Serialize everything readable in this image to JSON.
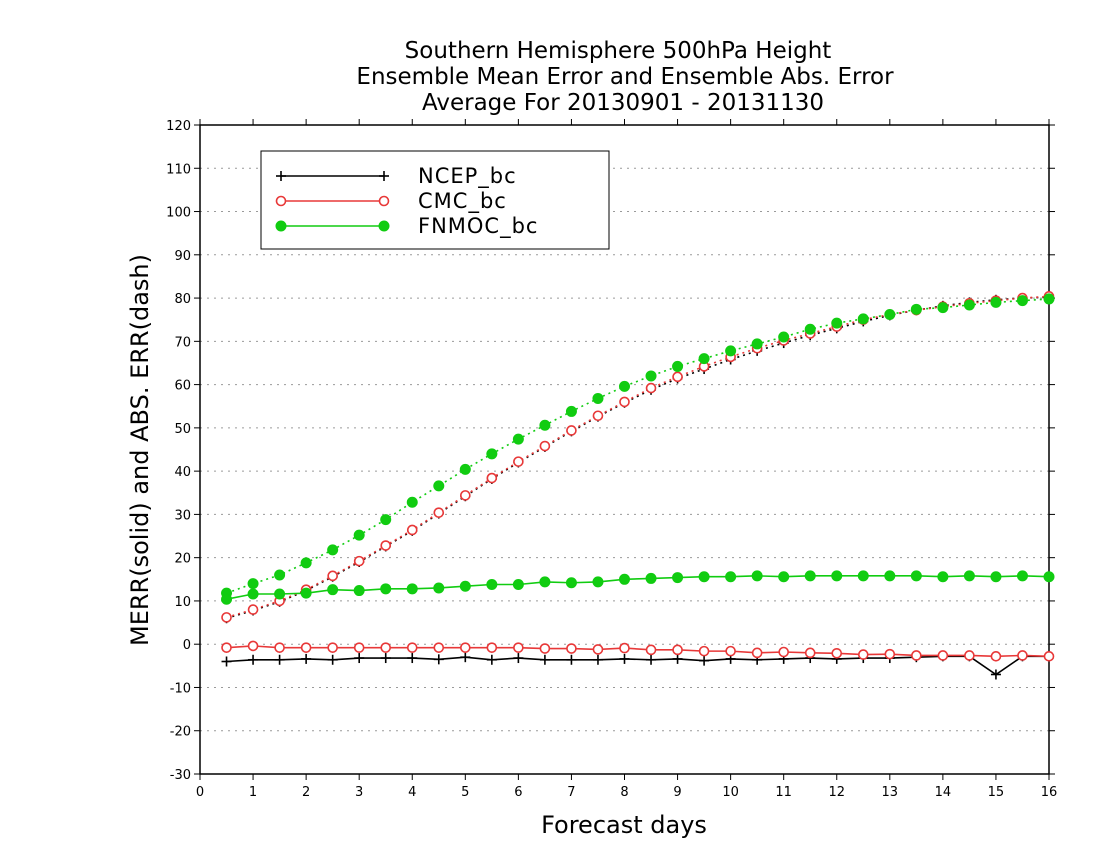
{
  "chart_data": {
    "type": "line",
    "title_lines": [
      "Southern Hemisphere 500hPa Height",
      "Ensemble Mean Error and Ensemble Abs. Error",
      "Average For 20130901 - 20131130"
    ],
    "xlabel": "Forecast days",
    "ylabel": "MERR(solid) and ABS. ERR(dash)",
    "xlim": [
      0,
      16
    ],
    "ylim": [
      -30,
      120
    ],
    "x_ticks": [
      "0",
      "1",
      "2",
      "3",
      "4",
      "5",
      "6",
      "7",
      "8",
      "9",
      "10",
      "11",
      "12",
      "13",
      "14",
      "15",
      "16"
    ],
    "y_ticks": [
      "-30",
      "-20",
      "-10",
      "0",
      "10",
      "20",
      "30",
      "40",
      "50",
      "60",
      "70",
      "80",
      "90",
      "100",
      "110",
      "120"
    ],
    "grid": "horizontal dotted",
    "legend_position": "top-left",
    "x": [
      0.5,
      1,
      1.5,
      2,
      2.5,
      3,
      3.5,
      4,
      4.5,
      5,
      5.5,
      6,
      6.5,
      7,
      7.5,
      8,
      8.5,
      9,
      9.5,
      10,
      10.5,
      11,
      11.5,
      12,
      12.5,
      13,
      13.5,
      14,
      14.5,
      15,
      15.5,
      16
    ],
    "series": [
      {
        "name": "NCEP_bc",
        "color": "#000000",
        "marker": "plus",
        "merr": [
          -4,
          -3.6,
          -3.6,
          -3.4,
          -3.6,
          -3.2,
          -3.2,
          -3.2,
          -3.5,
          -3,
          -3.6,
          -3.2,
          -3.6,
          -3.6,
          -3.6,
          -3.4,
          -3.6,
          -3.4,
          -3.8,
          -3.4,
          -3.6,
          -3.4,
          -3.2,
          -3.4,
          -3.2,
          -3.2,
          -3,
          -2.8,
          -2.8,
          -7,
          -2.8,
          -2.8
        ],
        "abs_err": [
          6,
          7.8,
          9.8,
          12.4,
          15.6,
          19,
          22.6,
          26.2,
          30.2,
          34.2,
          38.2,
          42,
          45.6,
          49.2,
          52.6,
          55.8,
          58.8,
          61.4,
          63.6,
          65.8,
          67.8,
          69.6,
          71.4,
          73,
          74.6,
          76,
          77.2,
          78.2,
          79,
          79.6,
          80,
          80.2
        ]
      },
      {
        "name": "CMC_bc",
        "color": "#e83838",
        "marker": "open-circle",
        "merr": [
          -0.8,
          -0.4,
          -0.8,
          -0.8,
          -0.8,
          -0.8,
          -0.8,
          -0.8,
          -0.8,
          -0.8,
          -0.8,
          -0.8,
          -1,
          -1,
          -1.2,
          -0.9,
          -1.3,
          -1.3,
          -1.6,
          -1.6,
          -2,
          -1.8,
          -2,
          -2.1,
          -2.4,
          -2.3,
          -2.6,
          -2.6,
          -2.6,
          -2.8,
          -2.6,
          -2.8
        ],
        "abs_err": [
          6.2,
          8,
          10,
          12.6,
          15.8,
          19.2,
          22.8,
          26.4,
          30.4,
          34.4,
          38.4,
          42.2,
          45.8,
          49.4,
          52.8,
          56,
          59.2,
          61.8,
          64.2,
          66.4,
          68.4,
          70.2,
          71.8,
          73.4,
          75,
          76.2,
          77.2,
          78,
          78.8,
          79.4,
          80,
          80.4
        ]
      },
      {
        "name": "FNMOC_bc",
        "color": "#11cc11",
        "marker": "filled-circle",
        "merr": [
          10.4,
          11.6,
          11.6,
          11.8,
          12.6,
          12.4,
          12.8,
          12.8,
          13,
          13.4,
          13.8,
          13.8,
          14.4,
          14.2,
          14.4,
          15,
          15.2,
          15.4,
          15.6,
          15.6,
          15.8,
          15.6,
          15.8,
          15.8,
          15.8,
          15.8,
          15.8,
          15.6,
          15.8,
          15.6,
          15.8,
          15.6
        ],
        "abs_err": [
          11.8,
          14,
          16,
          18.8,
          21.8,
          25.2,
          28.8,
          32.8,
          36.6,
          40.4,
          44,
          47.4,
          50.6,
          53.8,
          56.8,
          59.6,
          62,
          64.2,
          66,
          67.8,
          69.4,
          71,
          72.8,
          74.2,
          75.2,
          76.2,
          77.4,
          77.8,
          78.4,
          79,
          79.4,
          79.8
        ]
      }
    ]
  }
}
